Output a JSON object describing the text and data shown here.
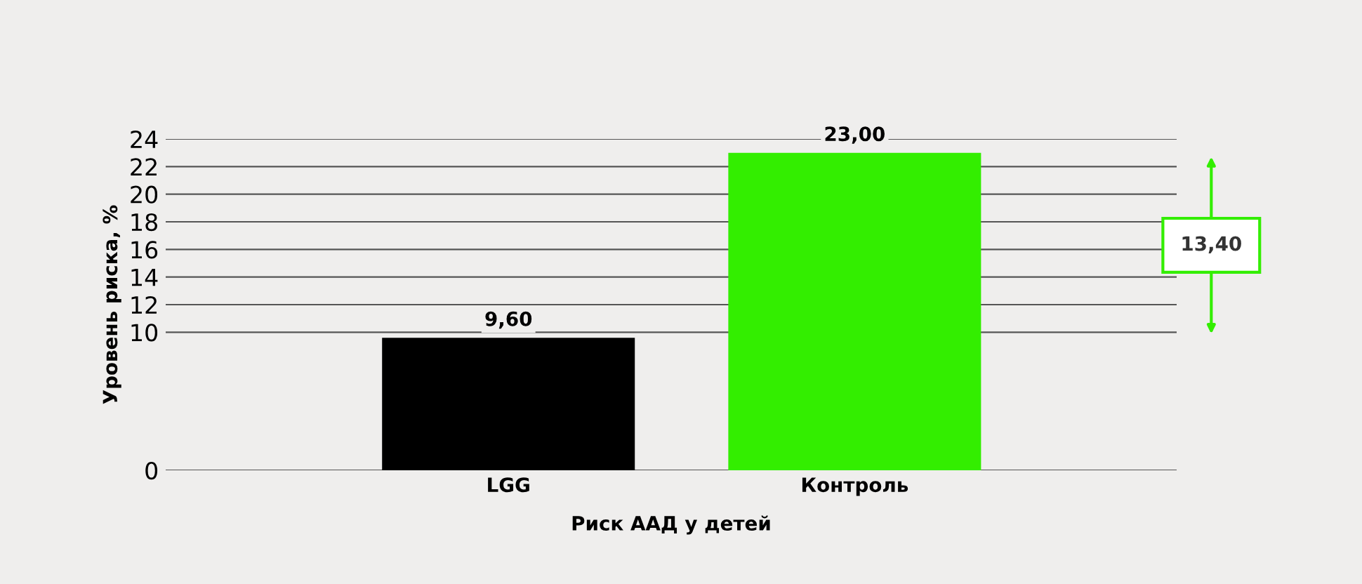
{
  "chart_data": {
    "type": "bar",
    "categories": [
      "LGG",
      "Контроль"
    ],
    "values": [
      9.6,
      23.0
    ],
    "colors": [
      "#000000",
      "#33ee00"
    ],
    "value_labels": [
      "9,60",
      "23,00"
    ],
    "xlabel": "Риск ААД у детей",
    "ylabel": "Уровень риска, %",
    "ylim": [
      0,
      24
    ],
    "yticks": [
      0,
      10,
      12,
      14,
      16,
      18,
      20,
      22,
      24
    ],
    "grid": "y",
    "annotations": [
      "13,40"
    ]
  }
}
